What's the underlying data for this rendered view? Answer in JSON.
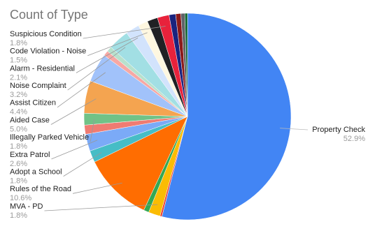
{
  "chart_data": {
    "type": "pie",
    "title": "Count of Type",
    "categories": [
      "Property Check",
      null,
      "MVA - PD",
      null,
      "Rules of the Road",
      "Adopt a School",
      "Extra Patrol",
      null,
      "Illegally Parked Vehicle",
      "Aided Case",
      "Assist Citizen",
      null,
      null,
      "Noise Complaint",
      "Alarm - Residential",
      "Code Violation - Noise",
      null,
      "Suspicious Condition",
      null,
      null,
      null,
      null
    ],
    "values": [
      52.9,
      0.3,
      1.8,
      0.8,
      10.6,
      1.8,
      2.6,
      1.4,
      1.8,
      5.0,
      4.4,
      0.8,
      0.8,
      3.2,
      2.1,
      1.5,
      1.6,
      1.8,
      1.0,
      0.8,
      0.6,
      0.4
    ],
    "value_labels": [
      "52.9%",
      null,
      "1.8%",
      null,
      "10.6%",
      "1.8%",
      "2.6%",
      null,
      "1.8%",
      "5.0%",
      "4.4%",
      null,
      null,
      "3.2%",
      "2.1%",
      "1.5%",
      null,
      "1.8%",
      null,
      null,
      null,
      null
    ],
    "colors": [
      "#4285f4",
      "#ea4335",
      "#fbbc04",
      "#34a853",
      "#ff6d01",
      "#46bdc6",
      "#7baaf7",
      "#f07b72",
      "#71c287",
      "#f4a450",
      "#a1c2fa",
      "#f7a8a4",
      "#b7e1cd",
      "#a2dfe4",
      "#d2e3fc",
      "#fef7e0",
      "#202124",
      "#e8223b",
      "#1a237e",
      "#8b1a1a",
      "#5f6368",
      "#0d652d"
    ]
  }
}
